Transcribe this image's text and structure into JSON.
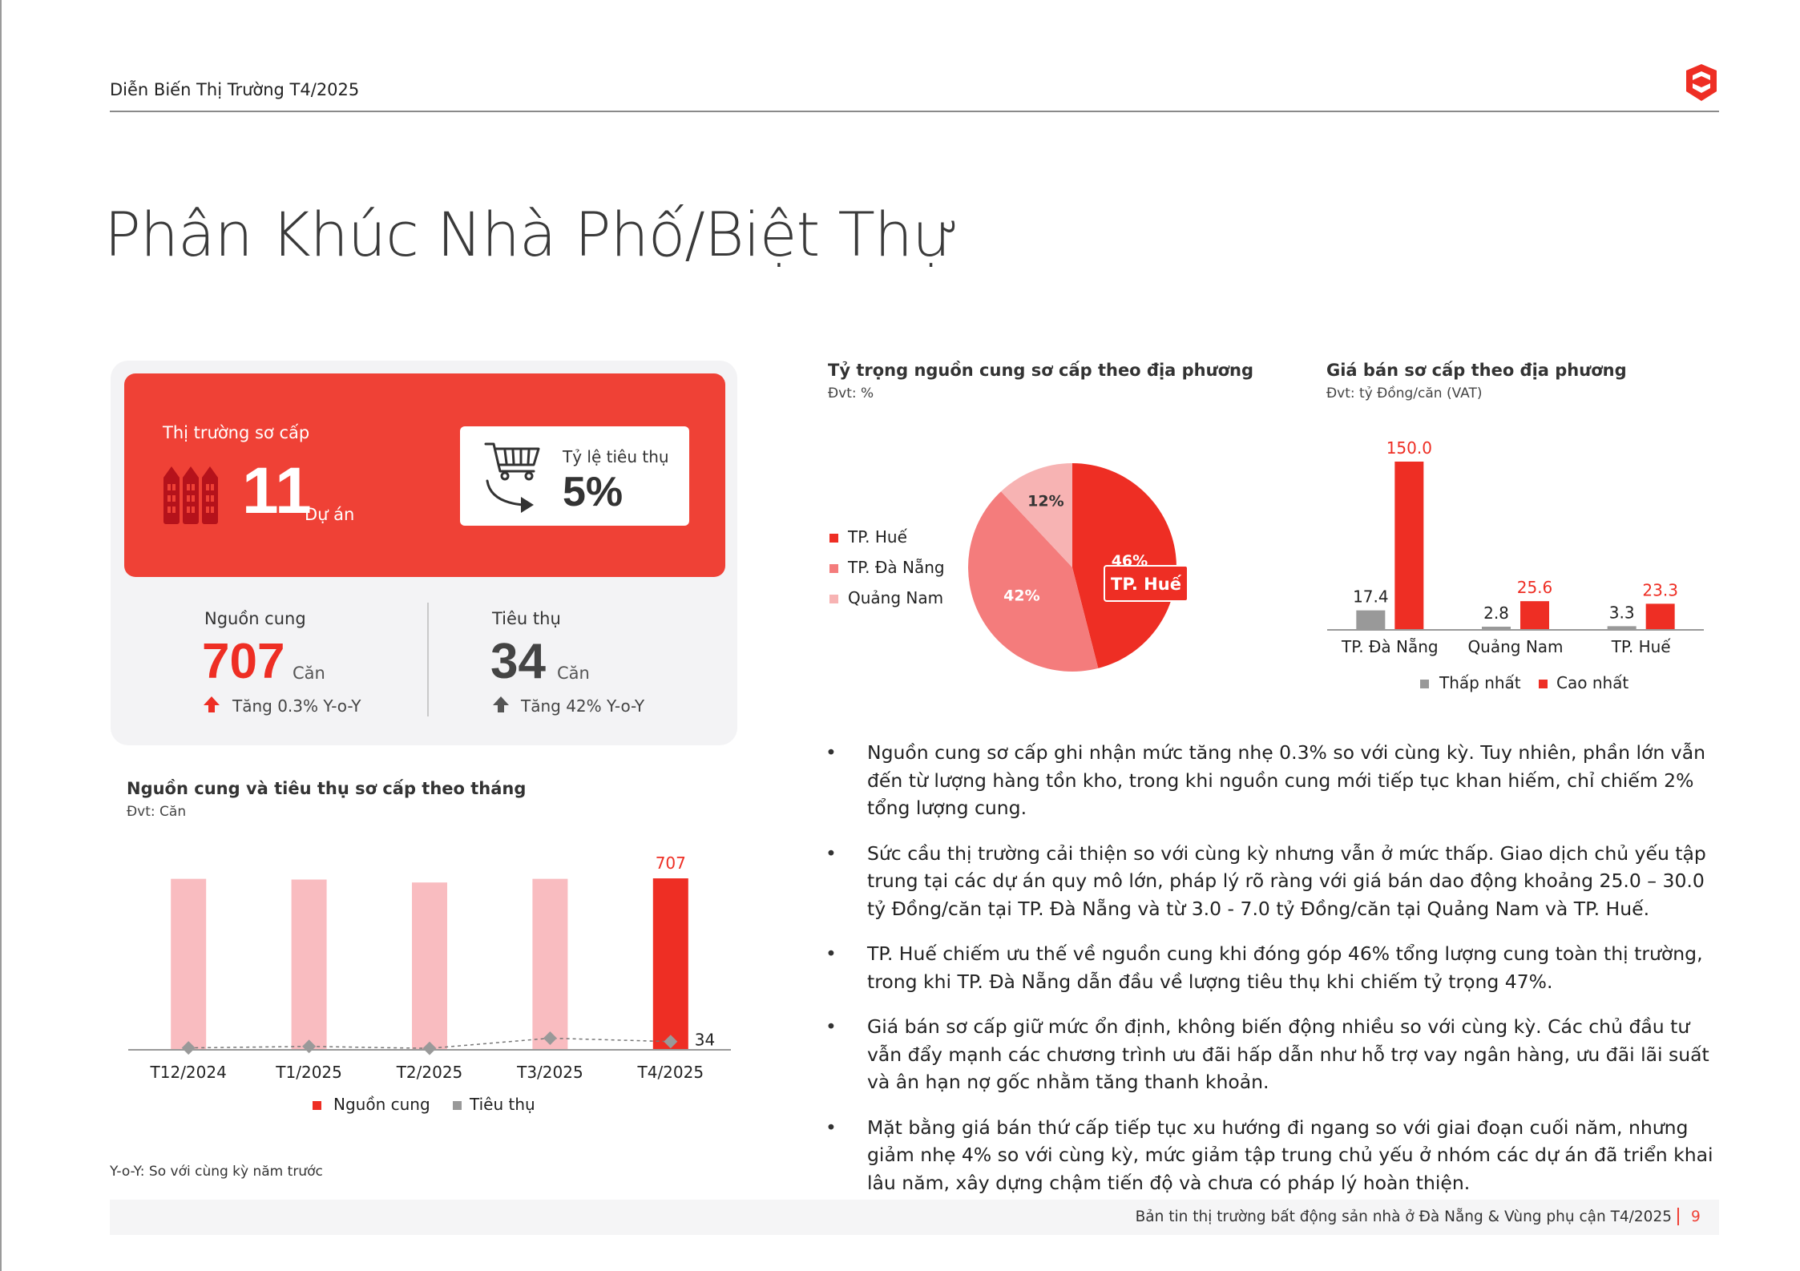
{
  "header": {
    "title": "Diễn Biến Thị Trường T4/2025"
  },
  "page_title": "Phân Khúc Nhà Phố/Biệt Thự",
  "primary_market": {
    "label": "Thị trường sơ cấp",
    "projects_count": "11",
    "projects_unit": "Dự án",
    "absorption_label": "Tỷ lệ tiêu thụ",
    "absorption_rate": "5%"
  },
  "stats": {
    "supply": {
      "label": "Nguồn cung",
      "value": "707",
      "unit": "Căn",
      "change": "Tăng 0.3% Y-o-Y"
    },
    "sales": {
      "label": "Tiêu thụ",
      "value": "34",
      "unit": "Căn",
      "change": "Tăng 42% Y-o-Y"
    }
  },
  "chart_data": [
    {
      "type": "bar",
      "title": "Nguồn cung và tiêu thụ sơ cấp theo tháng",
      "subtitle": "Đvt: Căn",
      "categories": [
        "T12/2024",
        "T1/2025",
        "T2/2025",
        "T3/2025",
        "T4/2025"
      ],
      "series": [
        {
          "name": "Nguồn cung",
          "values": [
            705,
            702,
            690,
            705,
            707
          ],
          "color": "#ee2e24"
        },
        {
          "name": "Tiêu thụ",
          "values": [
            8,
            14,
            6,
            48,
            34
          ],
          "color": "#999999"
        }
      ],
      "data_labels": {
        "Nguồn cung": "707",
        "Tiêu thụ": "34"
      },
      "ylim": [
        0,
        760
      ]
    },
    {
      "type": "pie",
      "title": "Tỷ trọng nguồn cung sơ cấp theo địa phương",
      "subtitle": "Đvt: %",
      "slices": [
        {
          "name": "TP. Huế",
          "value": 46,
          "label": "46%",
          "color": "#ee2e24"
        },
        {
          "name": "TP. Đà Nẵng",
          "value": 42,
          "label": "42%",
          "color": "#f47c7c"
        },
        {
          "name": "Quảng Nam",
          "value": 12,
          "label": "12%",
          "color": "#f7b3b3"
        }
      ],
      "callout": "TP. Huế",
      "legend_position": "left"
    },
    {
      "type": "bar",
      "title": "Giá bán sơ cấp theo địa phương",
      "subtitle": "Đvt: tỷ Đồng/căn (VAT)",
      "categories": [
        "TP. Đà Nẵng",
        "Quảng Nam",
        "TP. Huế"
      ],
      "series": [
        {
          "name": "Thấp nhất",
          "values": [
            17.4,
            2.8,
            3.3
          ],
          "labels": [
            "17.4",
            "2.8",
            "3.3"
          ],
          "color": "#999999"
        },
        {
          "name": "Cao nhất",
          "values": [
            150.0,
            25.6,
            23.3
          ],
          "labels": [
            "150.0",
            "25.6",
            "23.3"
          ],
          "color": "#ee2e24"
        }
      ],
      "ylim": [
        0,
        150
      ],
      "legend_position": "bottom"
    }
  ],
  "bullets": [
    "Nguồn cung sơ cấp ghi nhận mức tăng nhẹ 0.3% so với cùng kỳ. Tuy nhiên, phần lớn vẫn đến từ lượng hàng tồn kho, trong khi nguồn cung mới tiếp tục khan hiếm, chỉ chiếm 2% tổng lượng cung.",
    "Sức cầu thị trường cải thiện so với cùng kỳ nhưng vẫn ở mức thấp. Giao dịch chủ yếu tập trung tại các dự án quy mô lớn, pháp lý rõ ràng với giá bán dao động khoảng 25.0 – 30.0 tỷ Đồng/căn tại TP. Đà Nẵng và từ 3.0 - 7.0 tỷ Đồng/căn tại Quảng Nam và TP. Huế.",
    "TP. Huế chiếm ưu thế về nguồn cung khi đóng góp 46% tổng lượng cung toàn thị trường, trong khi TP. Đà Nẵng dẫn đầu về lượng tiêu thụ khi chiếm tỷ trọng 47%.",
    "Giá bán sơ cấp giữ mức ổn định, không biến động nhiều so với cùng kỳ. Các chủ đầu tư vẫn đẩy mạnh các chương trình ưu đãi hấp dẫn như hỗ trợ vay ngân hàng, ưu đãi lãi suất và ân hạn nợ gốc nhằm tăng thanh khoản.",
    "Mặt bằng giá bán thứ cấp tiếp tục xu hướng đi ngang so với giai đoạn cuối năm, nhưng giảm nhẹ 4% so với cùng kỳ, mức giảm tập trung chủ yếu ở nhóm các dự án đã triển khai lâu năm, xây dựng chậm tiến độ và chưa có pháp lý hoàn thiện."
  ],
  "note": "Y-o-Y: So với cùng kỳ năm trước",
  "footer": {
    "text": "Bản tin thị trường bất động sản nhà ở Đà Nẵng & Vùng phụ cận T4/2025",
    "page": "9"
  },
  "colors": {
    "accent": "#ef4136",
    "card_bg": "#f3f3f5"
  }
}
